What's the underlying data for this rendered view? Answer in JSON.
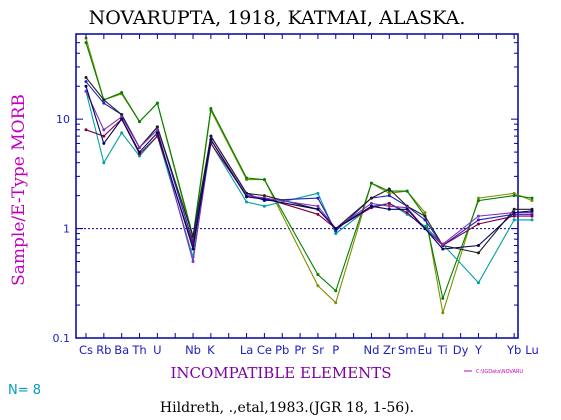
{
  "chart_data": {
    "type": "line",
    "title": "NOVARUPTA, 1918,  KATMAI,  ALASKA.",
    "ylabel": "Sample/E-Type MORB",
    "xlabel": "INCOMPATIBLE ELEMENTS",
    "y_scale": "log",
    "ylim": [
      0.1,
      60
    ],
    "y_ticks": [
      {
        "value": 0.1,
        "label": "0.1"
      },
      {
        "value": 1,
        "label": "1"
      },
      {
        "value": 10,
        "label": "10"
      }
    ],
    "reference_line": 1,
    "categories": [
      "Cs",
      "Rb",
      "Ba",
      "Th",
      "U",
      "",
      "Nb",
      "K",
      "",
      "La",
      "Ce",
      "Pb",
      "Pr",
      "Sr",
      "P",
      "",
      "Nd",
      "Zr",
      "Sm",
      "Eu",
      "Ti",
      "Dy",
      "Y",
      "",
      "Yb",
      "Lu"
    ],
    "series": [
      {
        "color": "#7f8f00",
        "values": [
          55,
          15,
          17,
          9.5,
          14,
          null,
          0.8,
          12,
          null,
          2.8,
          2.8,
          null,
          null,
          0.3,
          0.21,
          null,
          2.6,
          2.1,
          2.2,
          1.4,
          0.17,
          null,
          1.9,
          null,
          2.1,
          1.8
        ]
      },
      {
        "color": "#008000",
        "values": [
          50,
          15,
          17.5,
          9.5,
          14,
          null,
          0.85,
          12.5,
          null,
          2.9,
          2.8,
          null,
          null,
          0.38,
          0.27,
          null,
          2.6,
          2.2,
          2.2,
          1.3,
          0.23,
          null,
          1.8,
          null,
          2.0,
          1.9
        ]
      },
      {
        "color": "#00a0a0",
        "values": [
          18,
          4.0,
          7.5,
          4.6,
          7.0,
          null,
          0.55,
          6.0,
          null,
          1.75,
          1.6,
          null,
          null,
          2.1,
          0.9,
          null,
          1.6,
          1.7,
          1.35,
          1.05,
          0.72,
          null,
          0.32,
          null,
          1.2,
          1.2
        ]
      },
      {
        "color": "#2020c0",
        "values": [
          22,
          14,
          11,
          5.5,
          8.5,
          null,
          0.75,
          7.0,
          null,
          2.1,
          1.8,
          null,
          null,
          1.9,
          0.95,
          null,
          1.9,
          2.0,
          1.6,
          1.2,
          0.7,
          null,
          1.2,
          null,
          1.35,
          1.35
        ]
      },
      {
        "color": "#202020",
        "values": [
          24,
          15,
          11,
          5.5,
          8.5,
          null,
          0.85,
          7.0,
          null,
          2.1,
          2.0,
          null,
          null,
          1.5,
          1.0,
          null,
          1.9,
          2.3,
          1.6,
          1.3,
          0.7,
          null,
          0.6,
          null,
          1.5,
          1.5
        ]
      },
      {
        "color": "#800040",
        "values": [
          8,
          7.0,
          10,
          4.8,
          7.0,
          null,
          0.7,
          6.0,
          null,
          2.0,
          1.9,
          null,
          null,
          1.35,
          1.0,
          null,
          1.55,
          1.7,
          1.4,
          1.0,
          0.7,
          null,
          1.1,
          null,
          1.3,
          1.3
        ]
      },
      {
        "color": "#8030c0",
        "values": [
          18,
          8.0,
          10.5,
          5.5,
          8.0,
          null,
          0.5,
          6.5,
          null,
          2.0,
          1.9,
          null,
          null,
          1.6,
          1.0,
          null,
          1.7,
          1.6,
          1.55,
          1.0,
          0.72,
          null,
          1.3,
          null,
          1.4,
          1.4
        ]
      },
      {
        "color": "#000060",
        "values": [
          20,
          6.0,
          10,
          5.0,
          7.5,
          null,
          0.65,
          6.5,
          null,
          1.95,
          1.85,
          null,
          null,
          1.5,
          1.0,
          null,
          1.6,
          1.5,
          1.5,
          1.0,
          0.65,
          null,
          0.7,
          null,
          1.4,
          1.45
        ]
      }
    ]
  },
  "n_label": "N= 8",
  "legend_note": "C:\\IGData\\NOVARU",
  "citation": "Hildreth, .,etal,1983.(JGR 18, 1-56).",
  "colors": {
    "frame": "#0000a0",
    "title": "#000000",
    "ylabel": "#c000c0",
    "xlabel": "#8000a0",
    "tick_labels": "#2020c0",
    "n_label": "#00a0c0",
    "legend_note": "#c000c0",
    "citation": "#000000",
    "reference_line": "#0000a0"
  }
}
